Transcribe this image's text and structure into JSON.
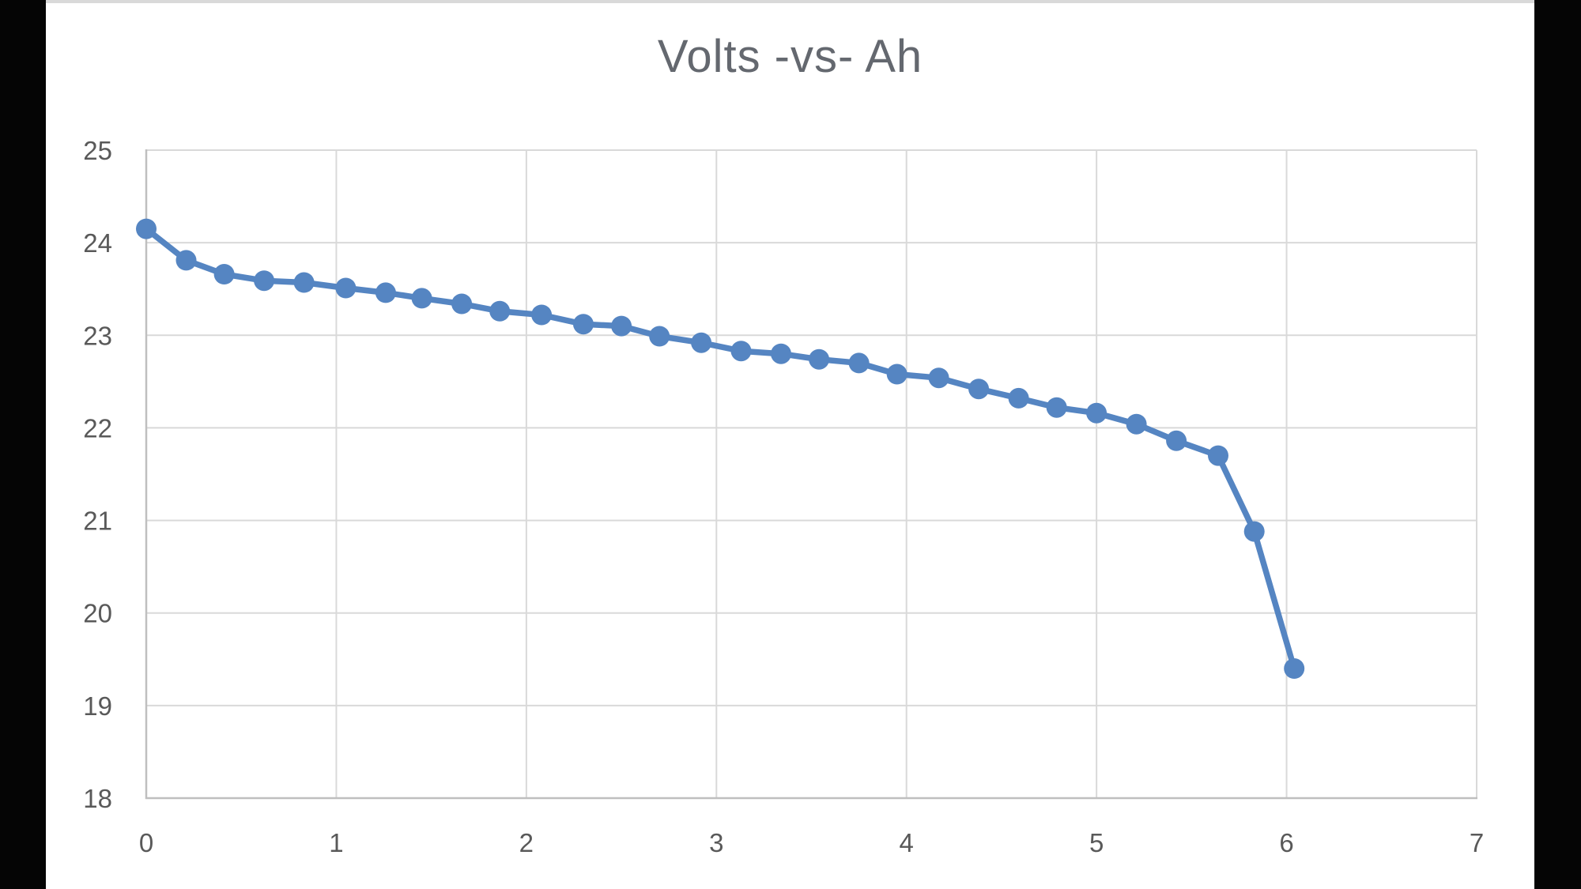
{
  "frame": {
    "background_color": "#050505",
    "card_background": "#ffffff",
    "card_top_strip_color": "#d9d9d9"
  },
  "chart": {
    "title_color": "#64686f",
    "series_color": "#5585c2",
    "gridline_color": "#d9d9d9",
    "axis_line_color": "#bfbfbf",
    "tick_label_color": "#595959"
  },
  "chart_data": {
    "type": "line",
    "title": "Volts -vs- Ah",
    "xlabel": "",
    "ylabel": "",
    "xlim": [
      0,
      7
    ],
    "ylim": [
      18,
      25
    ],
    "x_ticks": [
      0,
      1,
      2,
      3,
      4,
      5,
      6,
      7
    ],
    "y_ticks": [
      18,
      19,
      20,
      21,
      22,
      23,
      24,
      25
    ],
    "grid": true,
    "legend": false,
    "marker": "circle",
    "series": [
      {
        "name": "Volts",
        "x": [
          0.0,
          0.21,
          0.41,
          0.62,
          0.83,
          1.05,
          1.26,
          1.45,
          1.66,
          1.86,
          2.08,
          2.3,
          2.5,
          2.7,
          2.92,
          3.13,
          3.34,
          3.54,
          3.75,
          3.95,
          4.17,
          4.38,
          4.59,
          4.79,
          5.0,
          5.21,
          5.42,
          5.64,
          5.83,
          6.04
        ],
        "y": [
          24.15,
          23.81,
          23.66,
          23.59,
          23.57,
          23.51,
          23.46,
          23.4,
          23.34,
          23.26,
          23.22,
          23.12,
          23.1,
          22.99,
          22.92,
          22.83,
          22.8,
          22.74,
          22.7,
          22.58,
          22.54,
          22.42,
          22.32,
          22.22,
          22.16,
          22.04,
          21.86,
          21.7,
          20.88,
          19.4
        ]
      }
    ]
  }
}
